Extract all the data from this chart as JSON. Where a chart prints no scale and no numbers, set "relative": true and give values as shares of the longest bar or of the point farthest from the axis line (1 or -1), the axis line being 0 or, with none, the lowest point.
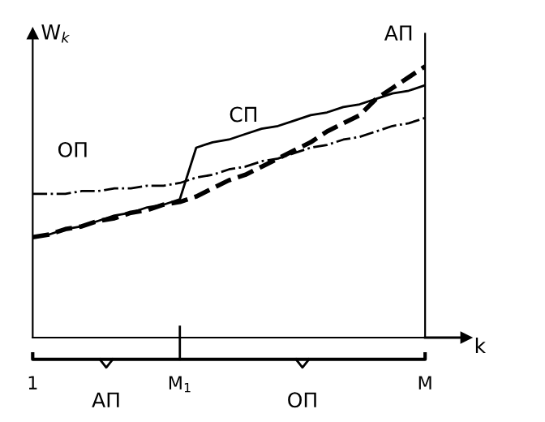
{
  "chart_data": {
    "type": "line",
    "relative": true,
    "ylabel": "W$_{k}$",
    "xlabel": "k",
    "categories": [
      "1",
      null,
      null,
      null,
      null,
      null,
      null,
      null,
      null,
      "M$_{1}$",
      null,
      null,
      null,
      null,
      null,
      null,
      null,
      null,
      null,
      null,
      null,
      null,
      null,
      null,
      "M"
    ],
    "series": [
      {
        "name": "ОП",
        "color": "#000000",
        "line_style": "dashdot",
        "values": [
          0.53,
          0.53,
          0.53,
          0.54,
          0.54,
          0.55,
          0.55,
          0.56,
          0.56,
          0.57,
          0.59,
          0.6,
          0.62,
          0.63,
          0.65,
          0.66,
          0.68,
          0.7,
          0.71,
          0.73,
          0.74,
          0.76,
          0.78,
          0.79,
          0.81
        ]
      },
      {
        "name": "СП",
        "color": "#000000",
        "line_style": "solid",
        "values": [
          0.37,
          0.38,
          0.4,
          0.41,
          0.43,
          0.45,
          0.46,
          0.48,
          0.49,
          0.51,
          0.7,
          0.72,
          0.73,
          0.75,
          0.77,
          0.78,
          0.8,
          0.82,
          0.83,
          0.85,
          0.86,
          0.88,
          0.9,
          0.91,
          0.93
        ]
      },
      {
        "name": "АП",
        "color": "#000000",
        "line_style": "dashed",
        "values": [
          0.37,
          0.38,
          0.4,
          0.41,
          0.43,
          0.44,
          0.46,
          0.47,
          0.49,
          0.5,
          0.52,
          0.55,
          0.58,
          0.6,
          0.63,
          0.66,
          0.69,
          0.72,
          0.76,
          0.79,
          0.82,
          0.88,
          0.92,
          0.96,
          1.0
        ]
      }
    ],
    "annotations": [
      "АП",
      "ОП"
    ],
    "grid": false,
    "legend": false
  }
}
